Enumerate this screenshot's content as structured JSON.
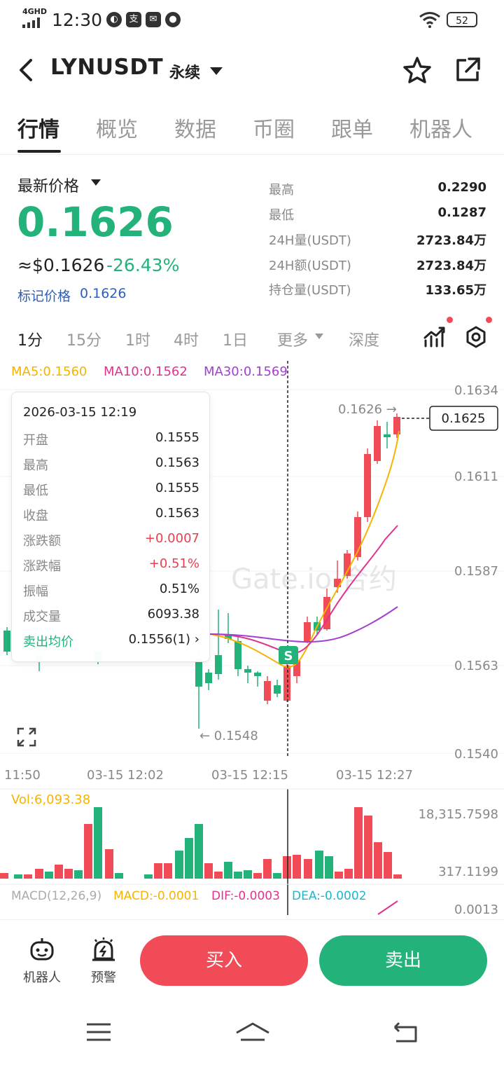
{
  "status_bar": {
    "network": "4GHD",
    "time": "12:30",
    "battery": "52"
  },
  "header": {
    "pair": "LYNUSDT",
    "contract_type": "永续"
  },
  "tabs": [
    {
      "label": "行情",
      "active": true
    },
    {
      "label": "概览",
      "active": false
    },
    {
      "label": "数据",
      "active": false
    },
    {
      "label": "币圈",
      "active": false
    },
    {
      "label": "跟单",
      "active": false
    },
    {
      "label": "机器人",
      "active": false
    }
  ],
  "price_panel": {
    "latest_label": "最新价格",
    "price": "0.1626",
    "usd_price": "≈$0.1626",
    "change_pct": "-26.43%",
    "mark_label": "标记价格",
    "mark_price": "0.1626",
    "stats": [
      {
        "label": "最高",
        "value": "0.2290"
      },
      {
        "label": "最低",
        "value": "0.1287"
      },
      {
        "label": "24H量(USDT)",
        "value": "2723.84万"
      },
      {
        "label": "24H额(USDT)",
        "value": "2723.84万"
      },
      {
        "label": "持仓量(USDT)",
        "value": "133.65万"
      }
    ]
  },
  "intervals": [
    {
      "label": "1分",
      "active": true
    },
    {
      "label": "15分",
      "active": false
    },
    {
      "label": "1时",
      "active": false
    },
    {
      "label": "4时",
      "active": false
    },
    {
      "label": "1日",
      "active": false
    },
    {
      "label": "更多",
      "active": false
    },
    {
      "label": "深度",
      "active": false
    }
  ],
  "ma_legend": {
    "ma5": "MA5:0.1560",
    "ma10": "MA10:0.1562",
    "ma30": "MA30:0.1569"
  },
  "colors": {
    "up": "#f04b57",
    "down": "#22b27a",
    "ma5": "#f5b400",
    "ma10": "#e0338f",
    "ma30": "#a33fd1",
    "mark": "#2e5fb8"
  },
  "chart": {
    "price_axis": [
      "0.1634",
      "0.1611",
      "0.1587",
      "0.1563",
      "0.1540"
    ],
    "time_axis": [
      "11:50",
      "03-15 12:02",
      "03-15 12:15",
      "03-15 12:27"
    ],
    "high_marker": "0.1626 →",
    "low_marker": "← 0.1548",
    "last_price_tag": "0.1625",
    "watermark": "Gate.io 合约",
    "volume_label": "Vol:6,093.38",
    "volume_axis": [
      "18,315.7598",
      "317.1199"
    ],
    "macd_labels": {
      "title": "MACD(12,26,9)",
      "macd": "MACD:-0.0001",
      "dif": "DIF:-0.0003",
      "dea": "DEA:-0.0002",
      "axis": "0.0013"
    },
    "signal_marker": "S"
  },
  "tooltip": {
    "date": "2026-03-15 12:19",
    "rows": [
      {
        "label": "开盘",
        "value": "0.1555"
      },
      {
        "label": "最高",
        "value": "0.1563"
      },
      {
        "label": "最低",
        "value": "0.1555"
      },
      {
        "label": "收盘",
        "value": "0.1563"
      },
      {
        "label": "涨跌额",
        "value": "+0.0007"
      },
      {
        "label": "涨跌幅",
        "value": "+0.51%"
      },
      {
        "label": "振幅",
        "value": "0.51%"
      },
      {
        "label": "成交量",
        "value": "6093.38"
      },
      {
        "label": "卖出均价",
        "value": "0.1556(1) ›"
      }
    ]
  },
  "bottom_bar": {
    "robot_label": "机器人",
    "alert_label": "预警",
    "buy_label": "买入",
    "sell_label": "卖出"
  }
}
